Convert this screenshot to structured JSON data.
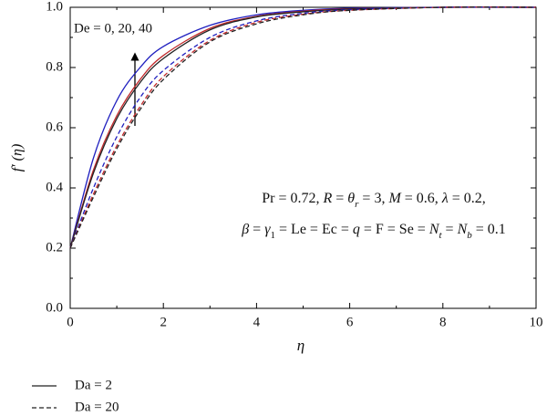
{
  "chart_data": {
    "type": "line",
    "x_label": "η",
    "y_label": "f′ (η)",
    "x": [
      0,
      0.5,
      1,
      1.5,
      2,
      3,
      4,
      5,
      6,
      8,
      10
    ],
    "series": [
      {
        "color": "#1f1fbf",
        "dash": "solid",
        "values": [
          0.2,
          0.5,
          0.69,
          0.8,
          0.87,
          0.94,
          0.975,
          0.99,
          0.997,
          1,
          1
        ]
      },
      {
        "color": "#c0282a",
        "dash": "solid",
        "values": [
          0.2,
          0.46,
          0.64,
          0.76,
          0.84,
          0.93,
          0.97,
          0.987,
          0.995,
          1,
          1
        ]
      },
      {
        "color": "#222222",
        "dash": "solid",
        "values": [
          0.2,
          0.45,
          0.63,
          0.75,
          0.83,
          0.925,
          0.968,
          0.985,
          0.994,
          1,
          1
        ]
      },
      {
        "color": "#1f1fbf",
        "dash": "dashed",
        "values": [
          0.2,
          0.4,
          0.57,
          0.7,
          0.79,
          0.9,
          0.955,
          0.98,
          0.992,
          1,
          1
        ]
      },
      {
        "color": "#c0282a",
        "dash": "dashed",
        "values": [
          0.2,
          0.38,
          0.54,
          0.67,
          0.77,
          0.89,
          0.95,
          0.977,
          0.99,
          1,
          1
        ]
      },
      {
        "color": "#222222",
        "dash": "dashed",
        "values": [
          0.2,
          0.37,
          0.53,
          0.66,
          0.76,
          0.885,
          0.945,
          0.975,
          0.99,
          1,
          1
        ]
      }
    ],
    "xlim": [
      0,
      10
    ],
    "xticks": [
      0,
      2,
      4,
      6,
      8,
      10
    ],
    "ylim": [
      0,
      1
    ],
    "yticks": [
      {
        "value": 0,
        "label": "0.0"
      },
      0.2,
      0.4,
      0.6,
      0.8,
      {
        "value": 1,
        "label": "1.0"
      }
    ],
    "legend": [
      {
        "label": "Da = 2",
        "dash": "solid"
      },
      {
        "label": "Da = 20",
        "dash": "dashed"
      }
    ],
    "annotation_arrow": "De = 0, 20, 40",
    "annotation_params": [
      [
        {
          "text": "Pr = 0.72, "
        },
        {
          "text": "R",
          "italic": true
        },
        {
          "text": " = "
        },
        {
          "text": "θ",
          "italic": true
        },
        {
          "text": "r",
          "italic": true,
          "sub": true
        },
        {
          "text": " = 3, "
        },
        {
          "text": "M",
          "italic": true
        },
        {
          "text": " = 0.6, "
        },
        {
          "text": "λ",
          "italic": true
        },
        {
          "text": " = 0.2,"
        }
      ],
      [
        {
          "text": "β",
          "italic": true
        },
        {
          "text": " = "
        },
        {
          "text": "γ",
          "italic": true
        },
        {
          "text": "1",
          "sub": true
        },
        {
          "text": " = Le = Ec = "
        },
        {
          "text": "q",
          "italic": true
        },
        {
          "text": " = F = Se = "
        },
        {
          "text": "N",
          "italic": true
        },
        {
          "text": "t",
          "italic": true,
          "sub": true
        },
        {
          "text": " = "
        },
        {
          "text": "N",
          "italic": true
        },
        {
          "text": "b",
          "italic": true,
          "sub": true
        },
        {
          "text": " = 0.1"
        }
      ]
    ]
  }
}
